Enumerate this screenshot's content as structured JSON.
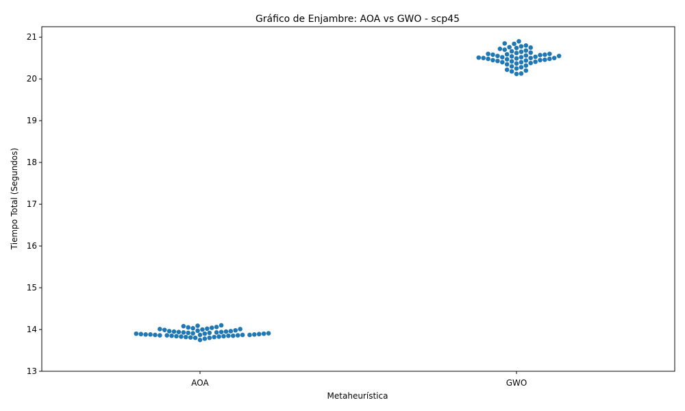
{
  "chart_data": {
    "type": "scatter",
    "subtype": "swarm",
    "title": "Gráfico de Enjambre: AOA vs GWO - scp45",
    "xlabel": "Metaheurística",
    "ylabel": "Tiempo Total (Segundos)",
    "categories": [
      "AOA",
      "GWO"
    ],
    "ylim": [
      13,
      21.25
    ],
    "yticks": [
      13,
      14,
      15,
      16,
      17,
      18,
      19,
      20,
      21
    ],
    "grid": false,
    "legend": "none",
    "point_color": "#1f77b4",
    "series": [
      {
        "category": "AOA",
        "values": [
          13.75,
          13.78,
          13.8,
          13.8,
          13.81,
          13.82,
          13.82,
          13.83,
          13.83,
          13.84,
          13.84,
          13.85,
          13.85,
          13.85,
          13.86,
          13.86,
          13.86,
          13.87,
          13.87,
          13.87,
          13.87,
          13.88,
          13.88,
          13.88,
          13.89,
          13.89,
          13.9,
          13.9,
          13.9,
          13.91,
          13.91,
          13.92,
          13.92,
          13.93,
          13.93,
          13.94,
          13.94,
          13.95,
          13.95,
          13.96,
          13.96,
          13.97,
          13.98,
          13.99,
          14.0,
          14.01,
          14.01,
          14.02,
          14.03,
          14.04,
          14.05,
          14.06,
          14.08,
          14.09,
          14.1
        ]
      },
      {
        "category": "GWO",
        "values": [
          20.12,
          20.13,
          20.18,
          20.2,
          20.22,
          20.25,
          20.28,
          20.3,
          20.32,
          20.35,
          20.37,
          20.38,
          20.4,
          20.4,
          20.41,
          20.42,
          20.43,
          20.44,
          20.45,
          20.45,
          20.46,
          20.47,
          20.48,
          20.48,
          20.49,
          20.5,
          20.5,
          20.5,
          20.51,
          20.52,
          20.52,
          20.53,
          20.54,
          20.55,
          20.55,
          20.56,
          20.57,
          20.58,
          20.58,
          20.59,
          20.6,
          20.6,
          20.62,
          20.63,
          20.65,
          20.66,
          20.68,
          20.7,
          20.72,
          20.74,
          20.75,
          20.76,
          20.78,
          20.8,
          20.84,
          20.85,
          20.9
        ]
      }
    ]
  }
}
